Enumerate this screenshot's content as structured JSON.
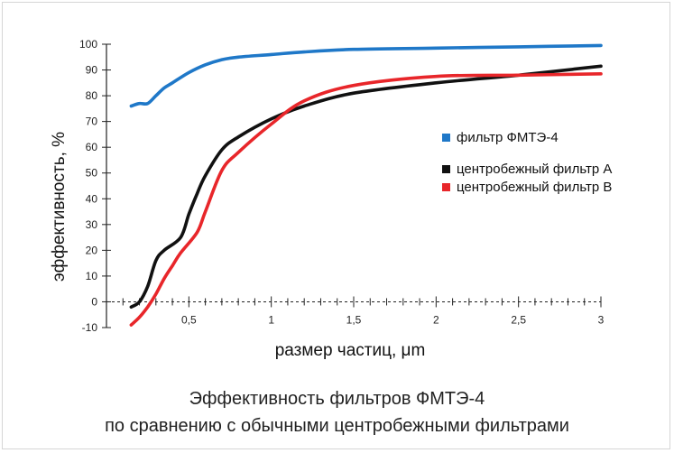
{
  "caption": {
    "line1": "Эффективность фильтров ФМТЭ-4",
    "line2": "по сравнению с обычными центробежными фильтрами"
  },
  "chart_data": {
    "type": "line",
    "xlabel": "размер частиц, μm",
    "ylabel": "эффективность, %",
    "xlim": [
      0.1,
      3.0
    ],
    "ylim": [
      -10,
      100
    ],
    "x_ticks": [
      {
        "v": 0.5,
        "label": "0,5"
      },
      {
        "v": 1.0,
        "label": "1"
      },
      {
        "v": 1.5,
        "label": "1,5"
      },
      {
        "v": 2.0,
        "label": "2"
      },
      {
        "v": 2.5,
        "label": "2,5"
      },
      {
        "v": 3.0,
        "label": "3"
      }
    ],
    "y_ticks": [
      -10,
      0,
      10,
      20,
      30,
      40,
      50,
      60,
      70,
      80,
      90,
      100
    ],
    "legend_position": "right",
    "series": [
      {
        "name": "фильтр ФМТЭ-4",
        "color": "#1f78c8",
        "x": [
          0.15,
          0.2,
          0.25,
          0.3,
          0.35,
          0.4,
          0.5,
          0.6,
          0.7,
          0.8,
          1.0,
          1.2,
          1.5,
          2.0,
          2.5,
          3.0
        ],
        "y": [
          76,
          77,
          77,
          80,
          83,
          85,
          89,
          92,
          94,
          95,
          96,
          97,
          98,
          98.5,
          99,
          99.5
        ]
      },
      {
        "name": "центробежный фильтр А",
        "color": "#111111",
        "x": [
          0.15,
          0.2,
          0.25,
          0.3,
          0.35,
          0.45,
          0.5,
          0.55,
          0.6,
          0.7,
          0.8,
          1.0,
          1.2,
          1.5,
          2.0,
          2.5,
          3.0
        ],
        "y": [
          -2,
          0,
          6,
          16,
          20,
          25,
          34,
          42,
          49,
          59,
          64,
          71,
          76,
          81,
          85,
          88,
          91.5
        ]
      },
      {
        "name": "центробежный фильтр В",
        "color": "#e8262a",
        "x": [
          0.15,
          0.2,
          0.25,
          0.3,
          0.35,
          0.4,
          0.45,
          0.55,
          0.6,
          0.7,
          0.8,
          1.0,
          1.2,
          1.5,
          2.0,
          2.5,
          3.0
        ],
        "y": [
          -9,
          -6,
          -2,
          3,
          9,
          14,
          19,
          27,
          35,
          51,
          58,
          69,
          78,
          84,
          87.5,
          88,
          88.5
        ]
      }
    ]
  }
}
